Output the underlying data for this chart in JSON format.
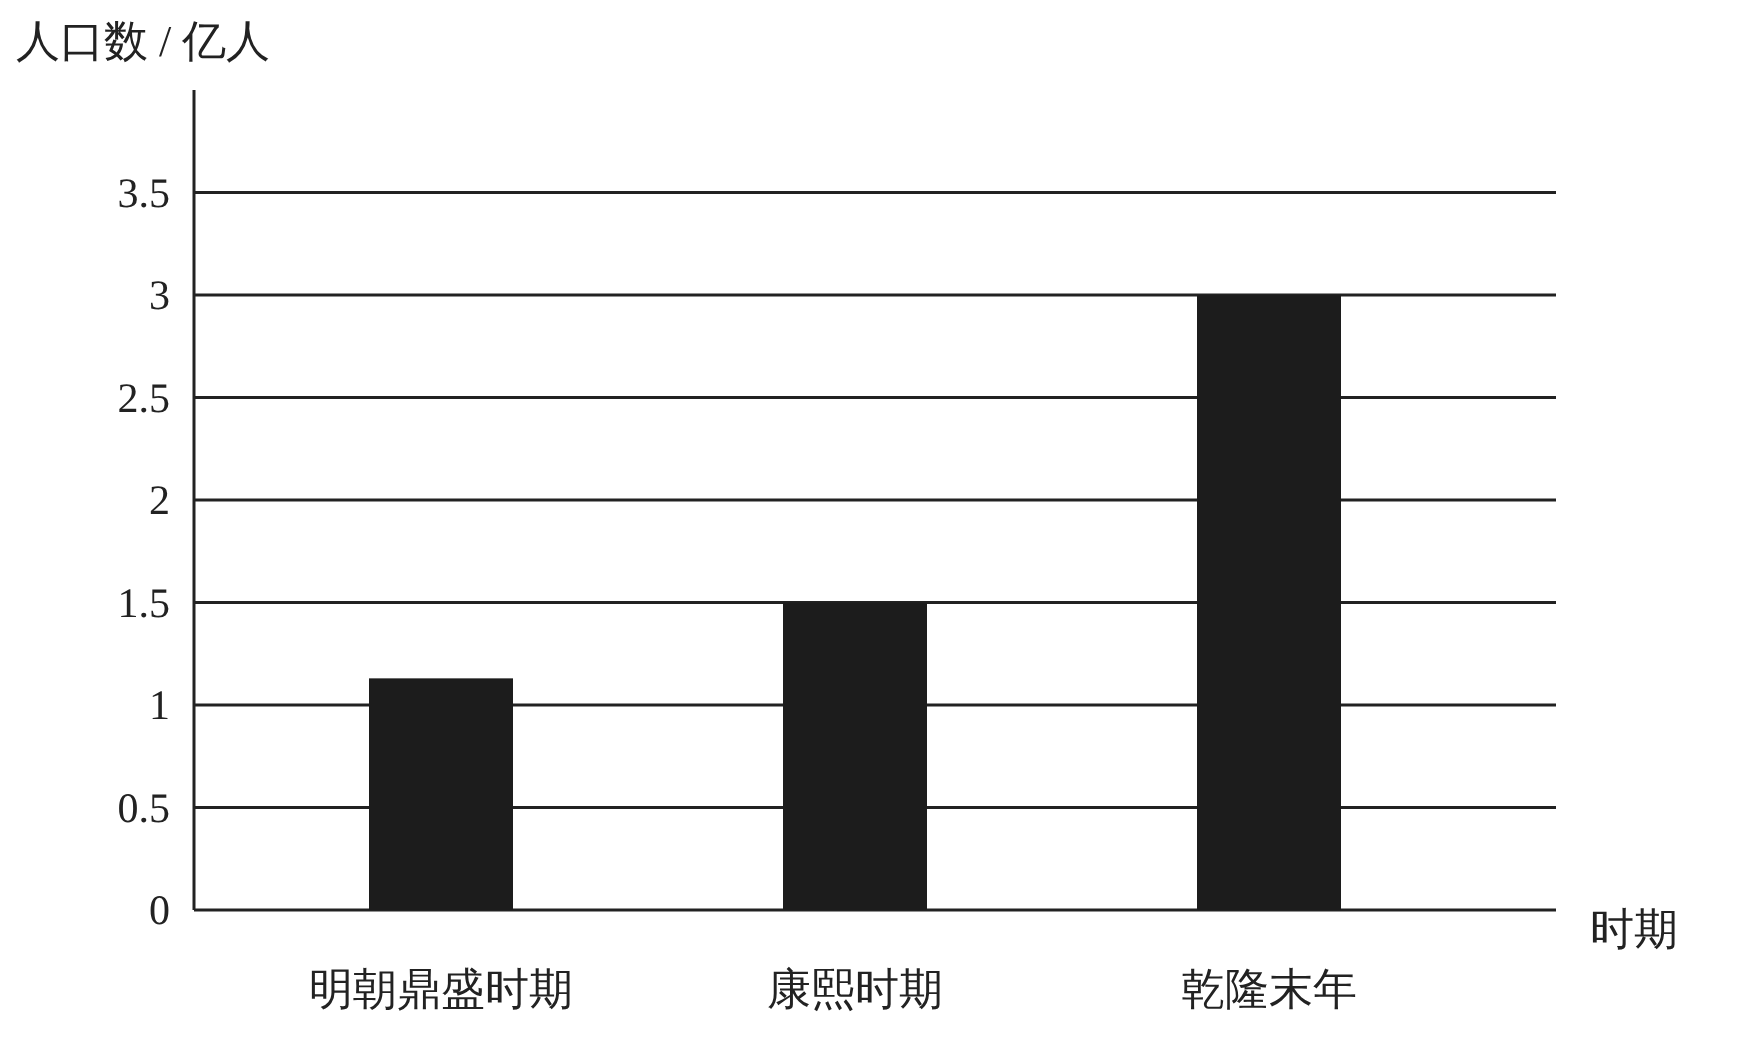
{
  "chart_data": {
    "type": "bar",
    "xlabel": "时期",
    "ylabel": "人口数 / 亿人",
    "categories": [
      "明朝鼎盛时期",
      "康熙时期",
      "乾隆末年"
    ],
    "values": [
      1.13,
      1.5,
      3.0
    ],
    "color": "#1c1c1c",
    "ylim": [
      0,
      4
    ],
    "yticks": [
      0,
      0.5,
      1,
      1.5,
      2,
      2.5,
      3,
      3.5
    ],
    "grid": "y"
  }
}
